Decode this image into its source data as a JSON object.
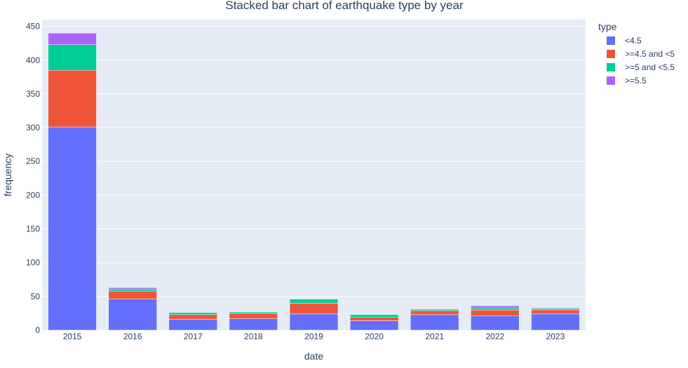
{
  "chart_data": {
    "type": "bar",
    "stacked": true,
    "title": "Stacked bar chart of earthquake type by year",
    "xlabel": "date",
    "ylabel": "frequency",
    "ylim": [
      0,
      450
    ],
    "y_ticks": [
      0,
      50,
      100,
      150,
      200,
      250,
      300,
      350,
      400,
      450
    ],
    "grid": true,
    "legend_placement": "right",
    "legend_title": "type",
    "categories": [
      "2015",
      "2016",
      "2017",
      "2018",
      "2019",
      "2020",
      "2021",
      "2022",
      "2023"
    ],
    "series": [
      {
        "name": "<4.5",
        "color": "#636efa",
        "values": [
          301,
          46,
          16,
          17,
          24,
          14,
          23,
          21,
          24
        ]
      },
      {
        "name": ">=4.5 and <5",
        "color": "#ef553b",
        "values": [
          84,
          12,
          7,
          8,
          16,
          5,
          6,
          9,
          6
        ]
      },
      {
        "name": ">=5 and <5.5",
        "color": "#00cc96",
        "values": [
          38,
          3,
          3,
          2,
          6,
          4,
          2,
          3,
          2
        ]
      },
      {
        "name": ">=5.5",
        "color": "#ab63fa",
        "values": [
          17,
          2,
          0,
          0,
          0,
          0,
          0,
          3,
          1
        ]
      }
    ]
  },
  "colors": {
    "plot_background": "#e5ecf6",
    "grid": "#ffffff",
    "text": "#2a3f5f"
  }
}
